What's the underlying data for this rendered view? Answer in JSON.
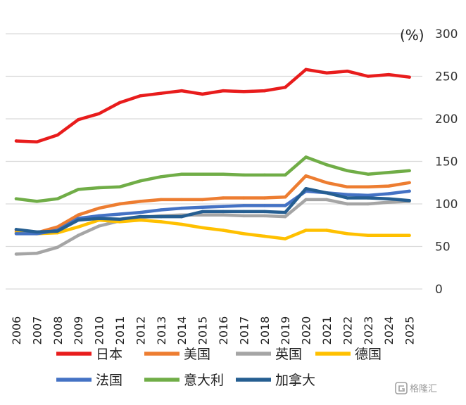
{
  "chart_data": {
    "type": "line",
    "unit_label": "(%)",
    "ylim": [
      0,
      300
    ],
    "yticks": [
      "0",
      "50",
      "100",
      "150",
      "200",
      "250",
      "300"
    ],
    "grid": true,
    "legend_position": "bottom",
    "categories": [
      "2006",
      "2007",
      "2008",
      "2009",
      "2010",
      "2011",
      "2012",
      "2013",
      "2014",
      "2015",
      "2016",
      "2017",
      "2018",
      "2019",
      "2020",
      "2021",
      "2022",
      "2023",
      "2024",
      "2025"
    ],
    "series": [
      {
        "name": "日本",
        "color": "#e81c1c",
        "values": [
          174,
          173,
          181,
          199,
          206,
          219,
          227,
          230,
          233,
          229,
          233,
          232,
          233,
          237,
          258,
          254,
          256,
          250,
          252,
          249
        ]
      },
      {
        "name": "美国",
        "color": "#ed7d31",
        "values": [
          68,
          66,
          73,
          87,
          95,
          100,
          103,
          105,
          105,
          105,
          107,
          107,
          107,
          108,
          133,
          125,
          120,
          120,
          121,
          125
        ]
      },
      {
        "name": "英国",
        "color": "#a5a5a5",
        "values": [
          41,
          42,
          49,
          63,
          74,
          80,
          84,
          86,
          87,
          87,
          87,
          86,
          86,
          85,
          105,
          105,
          100,
          100,
          102,
          103
        ]
      },
      {
        "name": "德国",
        "color": "#ffc000",
        "values": [
          66,
          65,
          66,
          73,
          81,
          79,
          81,
          79,
          76,
          72,
          69,
          65,
          62,
          59,
          69,
          69,
          65,
          63,
          63,
          63
        ]
      },
      {
        "name": "法国",
        "color": "#4472c4",
        "values": [
          65,
          65,
          69,
          83,
          86,
          88,
          90,
          93,
          95,
          96,
          97,
          98,
          98,
          98,
          115,
          113,
          111,
          110,
          112,
          115
        ]
      },
      {
        "name": "意大利",
        "color": "#70ad47",
        "values": [
          106,
          103,
          106,
          117,
          119,
          120,
          127,
          132,
          135,
          135,
          135,
          134,
          134,
          134,
          155,
          146,
          139,
          135,
          137,
          139
        ]
      },
      {
        "name": "加拿大",
        "color": "#255e91",
        "values": [
          70,
          67,
          68,
          81,
          83,
          82,
          85,
          85,
          85,
          91,
          91,
          91,
          91,
          90,
          118,
          113,
          107,
          107,
          106,
          104
        ]
      }
    ]
  },
  "watermark": {
    "icon": "gelonghui-logo-icon",
    "text": "格隆汇"
  }
}
